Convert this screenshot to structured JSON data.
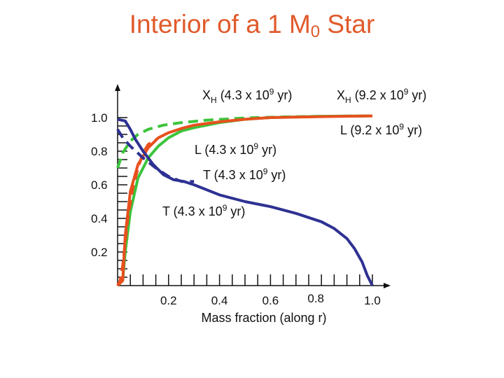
{
  "chart_data": {
    "type": "line",
    "title": "Interior of a 1 M",
    "title_sub": "0",
    "title_suffix": " Star",
    "xlabel": "Mass fraction (along r)",
    "xlim": [
      0,
      1.0
    ],
    "ylim": [
      0,
      1.0
    ],
    "x_ticks": [
      {
        "value": 0.2,
        "label": "0.2"
      },
      {
        "value": 0.4,
        "label": "0.4"
      },
      {
        "value": 0.6,
        "label": "0.6"
      },
      {
        "value": 0.8,
        "label": "0.8"
      },
      {
        "value": 1.0,
        "label": "1.0"
      }
    ],
    "y_ticks": [
      {
        "value": 0.2,
        "label": "0.2"
      },
      {
        "value": 0.4,
        "label": "0.4"
      },
      {
        "value": 0.6,
        "label": "0.6"
      },
      {
        "value": 0.8,
        "label": "0.8"
      },
      {
        "value": 1.0,
        "label": "1.0"
      }
    ],
    "grid": false,
    "series": [
      {
        "name": "XH (4.3 x 10^9 yr)",
        "color": "#3cc43c",
        "dash": true,
        "x": [
          0,
          0.02,
          0.05,
          0.08,
          0.12,
          0.18,
          0.25,
          0.35,
          0.5,
          0.65,
          0.8,
          1.0
        ],
        "y": [
          0.7,
          0.79,
          0.86,
          0.9,
          0.93,
          0.955,
          0.97,
          0.985,
          0.998,
          1.004,
          1.008,
          1.01
        ]
      },
      {
        "name": "XH (9.2 x 10^9 yr)",
        "color": "#3cc43c",
        "dash": false,
        "x": [
          0,
          0.02,
          0.03,
          0.05,
          0.08,
          0.12,
          0.16,
          0.2,
          0.25,
          0.3,
          0.4,
          0.5,
          0.6,
          0.8,
          1.0
        ],
        "y": [
          0.0,
          0.03,
          0.2,
          0.44,
          0.64,
          0.76,
          0.83,
          0.88,
          0.92,
          0.94,
          0.97,
          0.99,
          1.0,
          1.008,
          1.01
        ]
      },
      {
        "name": "L (4.3 x 10^9 yr)",
        "color": "#e8501e",
        "dash": true,
        "x": [
          0,
          0.01,
          0.02,
          0.04,
          0.06,
          0.08,
          0.1,
          0.12,
          0.15
        ],
        "y": [
          0.0,
          0.03,
          0.12,
          0.4,
          0.58,
          0.7,
          0.79,
          0.84,
          0.87
        ]
      },
      {
        "name": "L (9.2 x 10^9 yr)",
        "color": "#e8501e",
        "dash": false,
        "x": [
          0,
          0.02,
          0.03,
          0.05,
          0.08,
          0.12,
          0.16,
          0.2,
          0.25,
          0.3,
          0.4,
          0.5,
          0.6,
          0.8,
          1.0
        ],
        "y": [
          0.0,
          0.03,
          0.3,
          0.56,
          0.72,
          0.82,
          0.88,
          0.91,
          0.935,
          0.955,
          0.975,
          0.99,
          1.0,
          1.006,
          1.01
        ]
      },
      {
        "name": "T (4.3 x 10^9 yr)",
        "color": "#2e3192",
        "dash": true,
        "x": [
          0,
          0.02,
          0.05,
          0.1,
          0.15,
          0.2,
          0.25,
          0.3
        ],
        "y": [
          0.93,
          0.88,
          0.83,
          0.76,
          0.7,
          0.65,
          0.62,
          0.62
        ]
      },
      {
        "name": "T (4.3 x 10^9 yr)",
        "color": "#2e3192",
        "dash": false,
        "x": [
          0,
          0.03,
          0.05,
          0.07,
          0.1,
          0.14,
          0.18,
          0.22,
          0.26,
          0.3,
          0.4,
          0.5,
          0.6,
          0.7,
          0.8,
          0.85,
          0.9,
          0.93,
          0.96,
          0.98,
          1.0
        ],
        "y": [
          0.99,
          0.98,
          0.93,
          0.87,
          0.8,
          0.72,
          0.66,
          0.63,
          0.62,
          0.6,
          0.54,
          0.5,
          0.47,
          0.43,
          0.38,
          0.34,
          0.28,
          0.22,
          0.14,
          0.06,
          0.0
        ]
      }
    ],
    "annotations": [
      {
        "id": "xh43",
        "text": "X",
        "sub": "H",
        "rest": " (4.3 x 10",
        "sup": "9",
        "tail": " yr)"
      },
      {
        "id": "xh92",
        "text": "X",
        "sub": "H",
        "rest": " (9.2 x 10",
        "sup": "9",
        "tail": " yr)"
      },
      {
        "id": "l92",
        "text": "L (9.2 x 10",
        "sup": "9",
        "tail": " yr)"
      },
      {
        "id": "l43",
        "text": "L (4.3 x 10",
        "sup": "9",
        "tail": " yr)"
      },
      {
        "id": "t43a",
        "text": "T (4.3 x 10",
        "sup": "9",
        "tail": " yr)"
      },
      {
        "id": "t43b",
        "text": "T (4.3 x 10",
        "sup": "9",
        "tail": " yr)"
      }
    ]
  }
}
